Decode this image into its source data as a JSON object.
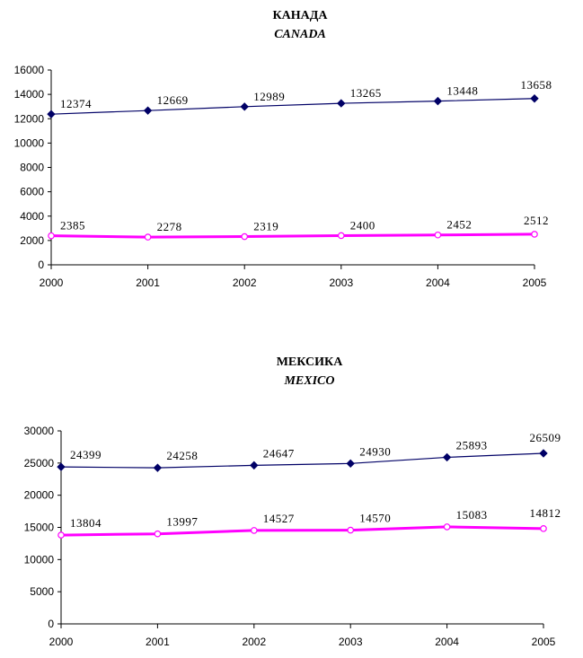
{
  "chart_data": [
    {
      "type": "line",
      "title": "КАНАДА",
      "subtitle": "CANADA",
      "x": [
        2000,
        2001,
        2002,
        2003,
        2004,
        2005
      ],
      "ylim": [
        0,
        16000
      ],
      "yticks": [
        0,
        2000,
        4000,
        6000,
        8000,
        10000,
        12000,
        14000,
        16000
      ],
      "grid": false,
      "series": [
        {
          "values": [
            12374,
            12669,
            12989,
            13265,
            13448,
            13658
          ],
          "color": "#000066",
          "marker": "diamond"
        },
        {
          "values": [
            2385,
            2278,
            2319,
            2400,
            2452,
            2512
          ],
          "color": "#ff00ff",
          "marker": "circle-open"
        }
      ]
    },
    {
      "type": "line",
      "title": "МЕКСИКА",
      "subtitle": "MEXICO",
      "x": [
        2000,
        2001,
        2002,
        2003,
        2004,
        2005
      ],
      "ylim": [
        0,
        30000
      ],
      "yticks": [
        0,
        5000,
        10000,
        15000,
        20000,
        25000,
        30000
      ],
      "grid": false,
      "series": [
        {
          "values": [
            24399,
            24258,
            24647,
            24930,
            25893,
            26509
          ],
          "color": "#000066",
          "marker": "diamond"
        },
        {
          "values": [
            13804,
            13997,
            14527,
            14570,
            15083,
            14812
          ],
          "color": "#ff00ff",
          "marker": "circle-open"
        }
      ]
    }
  ]
}
